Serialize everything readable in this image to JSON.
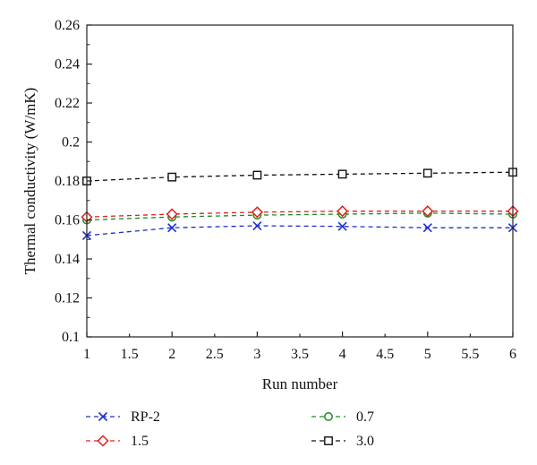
{
  "chart_data": {
    "type": "line",
    "xlabel": "Run number",
    "ylabel": "Thermal conductivity (W/mK)",
    "xlim": [
      1,
      6
    ],
    "ylim": [
      0.1,
      0.26
    ],
    "x_ticks": [
      "1",
      "1.5",
      "2",
      "2.5",
      "3",
      "3.5",
      "4",
      "4.5",
      "5",
      "5.5",
      "6"
    ],
    "y_ticks": [
      "0.1",
      "0.12",
      "0.14",
      "0.16",
      "0.18",
      "0.2",
      "0.22",
      "0.24",
      "0.26"
    ],
    "grid": false,
    "legend_position": "bottom",
    "x": [
      1,
      2,
      3,
      4,
      5,
      6
    ],
    "series": [
      {
        "name": "RP-2",
        "values": [
          0.152,
          0.156,
          0.157,
          0.1567,
          0.156,
          0.156
        ],
        "color": "#1f2ecc",
        "marker": "x",
        "line": "dashed"
      },
      {
        "name": "1.5",
        "values": [
          0.1615,
          0.163,
          0.164,
          0.1645,
          0.1645,
          0.1645
        ],
        "color": "#e0201c",
        "marker": "diamond",
        "line": "dashed"
      },
      {
        "name": "0.7",
        "values": [
          0.16,
          0.1615,
          0.1625,
          0.163,
          0.1635,
          0.163
        ],
        "color": "#1f8a1f",
        "marker": "circle",
        "line": "dashed"
      },
      {
        "name": "3.0",
        "values": [
          0.18,
          0.182,
          0.183,
          0.1835,
          0.184,
          0.1845
        ],
        "color": "#111111",
        "marker": "square",
        "line": "dashed"
      }
    ]
  }
}
